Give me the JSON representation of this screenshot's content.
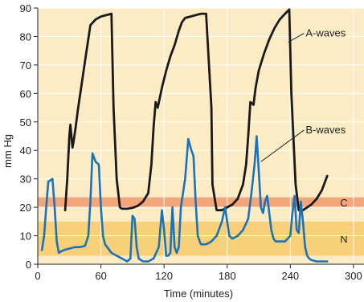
{
  "chart_data": {
    "type": "line",
    "xlabel": "Time (minutes)",
    "ylabel": "mm Hg",
    "xlim": [
      0,
      310
    ],
    "ylim": [
      0,
      90
    ],
    "xticks": [
      0,
      60,
      120,
      180,
      240,
      300
    ],
    "yticks": [
      0,
      10,
      20,
      30,
      40,
      50,
      60,
      70,
      80,
      90
    ],
    "grid": true,
    "colors": {
      "background": "#fcecc6",
      "grid": "#ffffff",
      "band_c": "#f2a67a",
      "band_n": "#f9d07a",
      "series_a": "#1a1a1a",
      "series_b": "#1a72b8"
    },
    "bands": [
      {
        "label": "C",
        "from": 20,
        "to": 23.5
      },
      {
        "label": "N",
        "from": 3,
        "to": 15
      }
    ],
    "annotations": [
      {
        "text": "A-waves",
        "x": 253,
        "y": 80,
        "target": [
          238,
          78
        ]
      },
      {
        "text": "B-waves",
        "x": 253,
        "y": 46,
        "target": [
          212,
          36
        ]
      }
    ],
    "series": [
      {
        "name": "A-waves",
        "x": [
          26,
          28,
          30,
          31,
          33,
          34,
          36,
          38,
          42,
          46,
          50,
          55,
          60,
          65,
          70,
          72,
          75,
          78,
          80,
          85,
          90,
          95,
          100,
          105,
          108,
          110,
          112,
          114,
          118,
          122,
          126,
          130,
          134,
          137,
          140,
          145,
          150,
          155,
          160,
          165,
          166,
          170,
          175,
          180,
          185,
          190,
          195,
          198,
          200,
          202,
          205,
          207,
          210,
          215,
          220,
          225,
          230,
          235,
          239,
          241,
          245,
          248,
          252,
          256,
          260,
          265,
          270,
          275
        ],
        "values": [
          19,
          30,
          45,
          49,
          41,
          43,
          48,
          54,
          64,
          74,
          84,
          86,
          87,
          87.5,
          88,
          55,
          30,
          20,
          19.5,
          19.5,
          19.8,
          20.5,
          22,
          25,
          35,
          48,
          57,
          55,
          62,
          68,
          73,
          77,
          82,
          85,
          86.5,
          87,
          87.5,
          88,
          88,
          55,
          28,
          19,
          19,
          20,
          21,
          23,
          28,
          35,
          45,
          57,
          56,
          62,
          68,
          74,
          79,
          83,
          86,
          88,
          89.5,
          60,
          28,
          19,
          19,
          20,
          21,
          23,
          26,
          31
        ]
      },
      {
        "name": "B-waves",
        "x": [
          4,
          6,
          8,
          10,
          12,
          14,
          16,
          18,
          20,
          22,
          25,
          30,
          35,
          40,
          45,
          48,
          50,
          52,
          55,
          58,
          60,
          62,
          64,
          66,
          70,
          75,
          80,
          85,
          88,
          90,
          92,
          94,
          96,
          100,
          105,
          110,
          115,
          118,
          120,
          122,
          124,
          126,
          128,
          130,
          132,
          134,
          136,
          140,
          143,
          146,
          148,
          150,
          152,
          155,
          160,
          165,
          170,
          175,
          178,
          180,
          182,
          185,
          190,
          195,
          200,
          203,
          206,
          208,
          210,
          212,
          214,
          216,
          218,
          220,
          222,
          224,
          226,
          228,
          230,
          235,
          240,
          242,
          244,
          246,
          248,
          250,
          252,
          254,
          256,
          258,
          260,
          265,
          270,
          275
        ],
        "values": [
          5,
          10,
          20,
          29,
          29.5,
          30,
          20,
          8,
          4,
          4.5,
          5,
          5.5,
          6,
          6,
          6.5,
          10,
          22,
          39,
          36,
          35,
          20,
          10,
          7,
          6,
          4,
          3,
          2,
          1,
          2,
          17,
          16,
          6,
          2,
          1,
          1,
          2,
          6,
          19,
          12,
          3,
          3,
          4,
          20,
          6,
          4,
          6,
          20,
          30,
          44,
          40,
          38,
          22,
          10,
          7,
          7,
          8,
          10,
          15,
          20,
          15,
          10,
          9,
          10,
          12,
          16,
          25,
          35,
          45,
          33,
          20,
          18,
          22,
          24,
          18,
          12,
          9,
          8,
          8,
          8,
          8,
          10,
          18,
          24,
          12,
          11,
          22,
          15,
          6,
          3,
          2,
          1.5,
          1,
          1,
          1
        ]
      }
    ]
  }
}
